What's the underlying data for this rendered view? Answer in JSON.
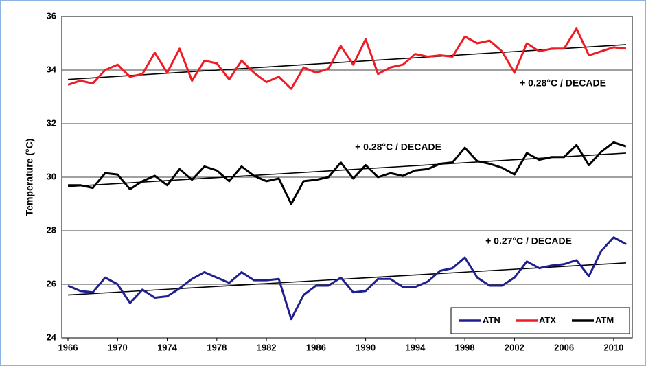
{
  "chart_data": {
    "type": "line",
    "y_label": "Temperature (°C)",
    "xlim": [
      1965.5,
      2011.5
    ],
    "ylim": [
      24,
      36
    ],
    "xticks": [
      1966,
      1970,
      1974,
      1978,
      1982,
      1986,
      1990,
      1994,
      1998,
      2002,
      2006,
      2010
    ],
    "yticks": [
      24,
      26,
      28,
      30,
      32,
      34,
      36
    ],
    "grid": true,
    "legend": "lower right",
    "x": [
      1966,
      1967,
      1968,
      1969,
      1970,
      1971,
      1972,
      1973,
      1974,
      1975,
      1976,
      1977,
      1978,
      1979,
      1980,
      1981,
      1982,
      1983,
      1984,
      1985,
      1986,
      1987,
      1988,
      1989,
      1990,
      1991,
      1992,
      1993,
      1994,
      1995,
      1996,
      1997,
      1998,
      1999,
      2000,
      2001,
      2002,
      2003,
      2004,
      2005,
      2006,
      2007,
      2008,
      2009,
      2010,
      2011
    ],
    "series": [
      {
        "name": "ATN",
        "color": "#1f1f8f",
        "values": [
          25.95,
          25.75,
          25.7,
          26.25,
          26.0,
          25.3,
          25.8,
          25.5,
          25.55,
          25.85,
          26.2,
          26.45,
          26.25,
          26.05,
          26.45,
          26.15,
          26.15,
          26.2,
          24.7,
          25.6,
          25.95,
          25.95,
          26.25,
          25.7,
          25.75,
          26.2,
          26.2,
          25.9,
          25.9,
          26.1,
          26.5,
          26.6,
          27.0,
          26.25,
          25.95,
          25.95,
          26.25,
          26.85,
          26.6,
          26.7,
          26.75,
          26.9,
          26.3,
          27.25,
          27.75,
          27.5
        ]
      },
      {
        "name": "ATX",
        "color": "#ee1c25",
        "values": [
          33.45,
          33.6,
          33.5,
          34.0,
          34.2,
          33.75,
          33.85,
          34.65,
          33.9,
          34.8,
          33.6,
          34.35,
          34.25,
          33.65,
          34.35,
          33.9,
          33.55,
          33.75,
          33.3,
          34.1,
          33.9,
          34.05,
          34.9,
          34.2,
          35.15,
          33.85,
          34.1,
          34.2,
          34.6,
          34.5,
          34.55,
          34.5,
          35.25,
          35.0,
          35.1,
          34.7,
          33.9,
          35.0,
          34.7,
          34.8,
          34.8,
          35.55,
          34.55,
          34.7,
          34.85,
          34.8
        ]
      },
      {
        "name": "ATM",
        "color": "#000000",
        "values": [
          29.7,
          29.7,
          29.6,
          30.15,
          30.1,
          29.55,
          29.85,
          30.05,
          29.7,
          30.3,
          29.9,
          30.4,
          30.25,
          29.85,
          30.4,
          30.05,
          29.85,
          29.95,
          29.0,
          29.85,
          29.9,
          30.0,
          30.55,
          29.95,
          30.45,
          30.0,
          30.15,
          30.05,
          30.25,
          30.3,
          30.5,
          30.55,
          31.1,
          30.6,
          30.5,
          30.35,
          30.1,
          30.9,
          30.65,
          30.75,
          30.75,
          31.2,
          30.45,
          30.95,
          31.3,
          31.15
        ]
      }
    ],
    "trend_lines": [
      {
        "x": [
          1966,
          2011
        ],
        "values": [
          25.6,
          26.8
        ],
        "color": "#000000"
      },
      {
        "x": [
          1966,
          2011
        ],
        "values": [
          33.65,
          34.95
        ],
        "color": "#000000"
      },
      {
        "x": [
          1966,
          2011
        ],
        "values": [
          29.65,
          30.9
        ],
        "color": "#000000"
      }
    ],
    "annotations": [
      "+ 0.27°C / DECADE",
      "+ 0.28°C / DECADE",
      "+ 0.28°C / DECADE"
    ]
  }
}
